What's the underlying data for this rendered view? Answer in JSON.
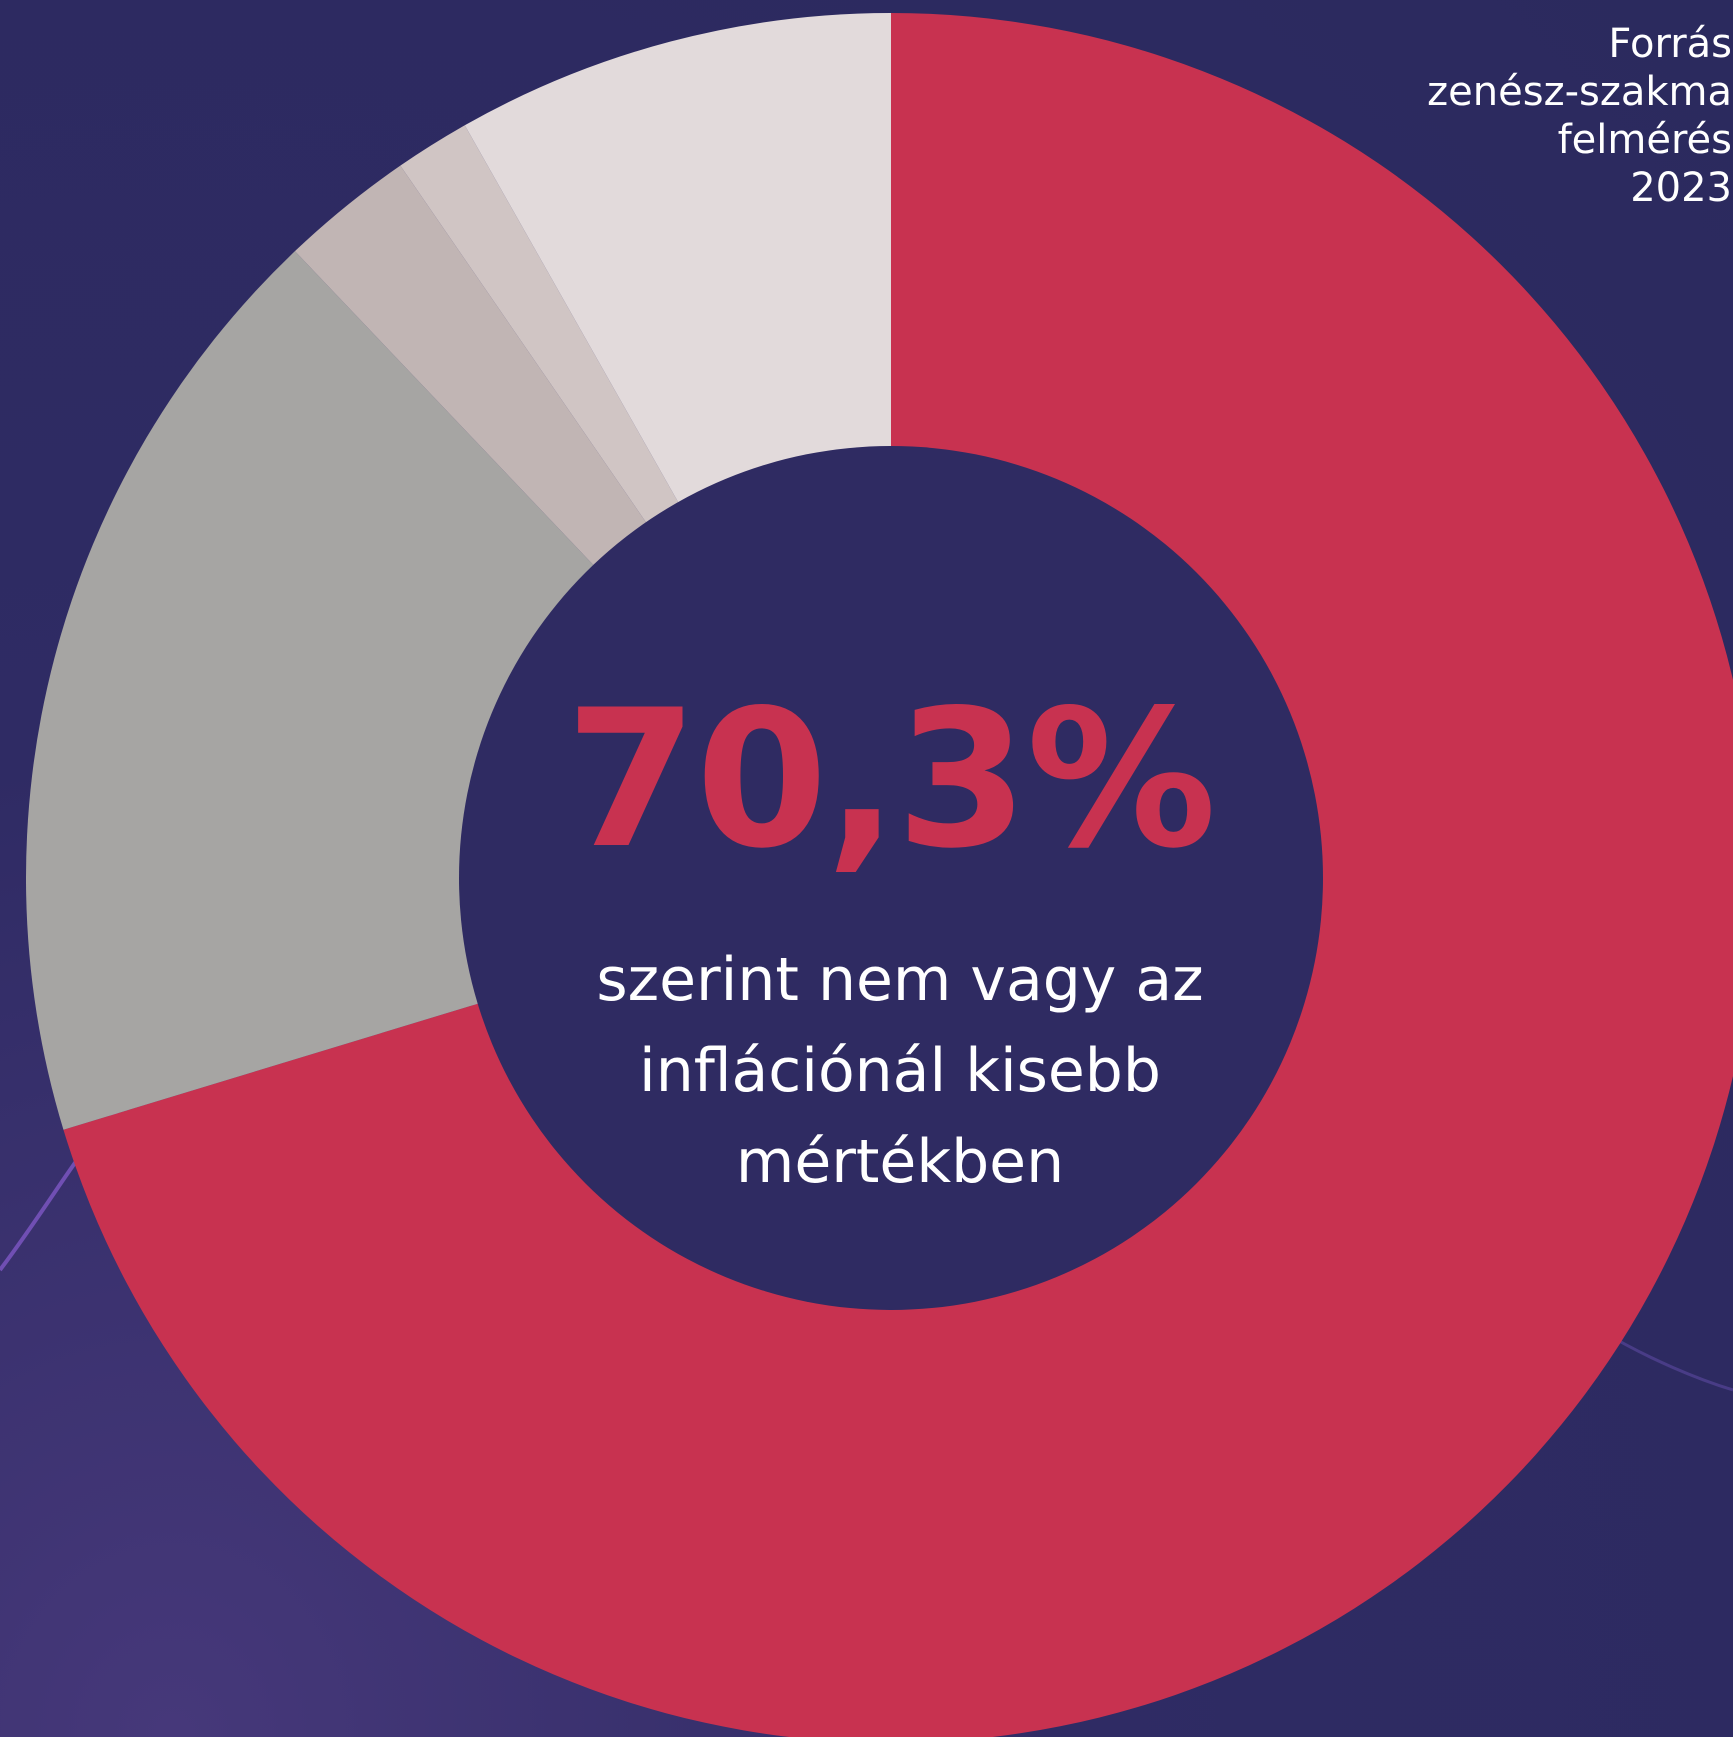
{
  "source_note": {
    "lines": [
      "Forrás",
      "zenész-szakma",
      "felmérés",
      "2023"
    ]
  },
  "center": {
    "value": "70,3%",
    "caption": "szerint nem vagy az inflációnál kisebb mértékben"
  },
  "colors": {
    "background": "#2b2a5e",
    "accent": "#c83250",
    "segment_gray": "#a6a5a3",
    "segment_taupe": "#c1b5b4",
    "segment_light_taupe": "#d0c5c4",
    "segment_pale": "#e2dadb",
    "inner": "#2f2b62"
  },
  "chart_data": {
    "type": "pie",
    "values": [
      70.3,
      17.6,
      2.5,
      1.4,
      8.2
    ]
  }
}
